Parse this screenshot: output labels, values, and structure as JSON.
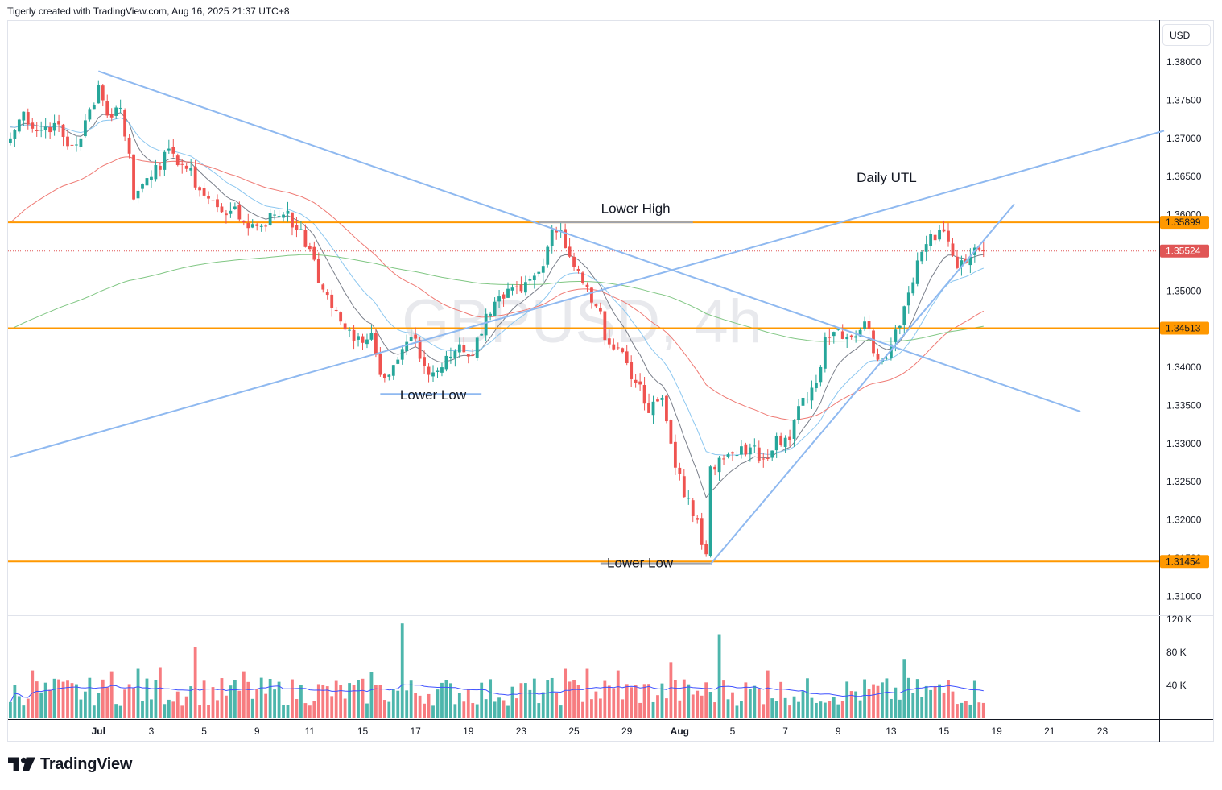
{
  "header": {
    "text": "Tigerly created with TradingView.com, Aug 16, 2025 21:37 UTC+8"
  },
  "watermark": "GBPUSD, 4h",
  "currency": "USD",
  "brand": {
    "name": "TradingView",
    "color": "#131722"
  },
  "colors": {
    "up": "#26a69a",
    "down": "#ef5350",
    "up_vol": "#4db6ac",
    "down_vol": "#f77c80",
    "orange": "#ff9800",
    "trendline": "#8fb9f0",
    "ema_fast": "#7a7f8a",
    "ema_mid": "#8cc7f0",
    "ema_red": "#ef7a74",
    "ema_green": "#81c784",
    "vol_ma": "#3f51ff",
    "current": "#e05656"
  },
  "chart_data": {
    "type": "candlestick",
    "symbol": "GBPUSD",
    "timeframe": "4h",
    "ylim": [
      1.3075,
      1.3855
    ],
    "y_ticks": [
      "1.38000",
      "1.37500",
      "1.37000",
      "1.36500",
      "1.36000",
      "1.35500",
      "1.35000",
      "1.34500",
      "1.34000",
      "1.33500",
      "1.33000",
      "1.32500",
      "1.32000",
      "1.31500",
      "1.31000"
    ],
    "x_ticks": [
      {
        "label": "Jul",
        "bar": 20
      },
      {
        "label": "3",
        "bar": 32
      },
      {
        "label": "5",
        "bar": 44
      },
      {
        "label": "9",
        "bar": 56
      },
      {
        "label": "11",
        "bar": 68
      },
      {
        "label": "15",
        "bar": 80
      },
      {
        "label": "17",
        "bar": 92
      },
      {
        "label": "19",
        "bar": 104
      },
      {
        "label": "23",
        "bar": 116
      },
      {
        "label": "25",
        "bar": 128
      },
      {
        "label": "29",
        "bar": 140
      },
      {
        "label": "Aug",
        "bar": 152
      },
      {
        "label": "5",
        "bar": 164
      },
      {
        "label": "7",
        "bar": 176
      },
      {
        "label": "9",
        "bar": 188
      },
      {
        "label": "13",
        "bar": 200
      },
      {
        "label": "15",
        "bar": 212
      },
      {
        "label": "19",
        "bar": 224
      },
      {
        "label": "21",
        "bar": 236
      },
      {
        "label": "23",
        "bar": 248
      }
    ],
    "anchors": [
      [
        0,
        1.37
      ],
      [
        3,
        1.3735
      ],
      [
        6,
        1.371
      ],
      [
        10,
        1.372
      ],
      [
        13,
        1.369
      ],
      [
        16,
        1.37
      ],
      [
        20,
        1.377
      ],
      [
        22,
        1.373
      ],
      [
        25,
        1.374
      ],
      [
        27,
        1.368
      ],
      [
        28,
        1.362
      ],
      [
        30,
        1.364
      ],
      [
        33,
        1.3665
      ],
      [
        37,
        1.368
      ],
      [
        40,
        1.366
      ],
      [
        44,
        1.3625
      ],
      [
        47,
        1.361
      ],
      [
        50,
        1.3605
      ],
      [
        53,
        1.359
      ],
      [
        56,
        1.3585
      ],
      [
        60,
        1.36
      ],
      [
        63,
        1.3605
      ],
      [
        65,
        1.358
      ],
      [
        68,
        1.3555
      ],
      [
        70,
        1.351
      ],
      [
        72,
        1.3495
      ],
      [
        75,
        1.346
      ],
      [
        78,
        1.3435
      ],
      [
        82,
        1.3445
      ],
      [
        84,
        1.339
      ],
      [
        88,
        1.341
      ],
      [
        91,
        1.344
      ],
      [
        95,
        1.339
      ],
      [
        98,
        1.34
      ],
      [
        102,
        1.343
      ],
      [
        105,
        1.3415
      ],
      [
        108,
        1.347
      ],
      [
        112,
        1.349
      ],
      [
        116,
        1.35
      ],
      [
        120,
        1.3525
      ],
      [
        123,
        1.358
      ],
      [
        125,
        1.358
      ],
      [
        127,
        1.3545
      ],
      [
        130,
        1.351
      ],
      [
        133,
        1.348
      ],
      [
        136,
        1.343
      ],
      [
        139,
        1.342
      ],
      [
        142,
        1.338
      ],
      [
        145,
        1.334
      ],
      [
        148,
        1.336
      ],
      [
        150,
        1.33
      ],
      [
        153,
        1.323
      ],
      [
        156,
        1.32
      ],
      [
        158,
        1.3155
      ],
      [
        159,
        1.327
      ],
      [
        162,
        1.328
      ],
      [
        165,
        1.3285
      ],
      [
        168,
        1.3295
      ],
      [
        171,
        1.328
      ],
      [
        174,
        1.331
      ],
      [
        177,
        1.3305
      ],
      [
        180,
        1.336
      ],
      [
        183,
        1.338
      ],
      [
        185,
        1.344
      ],
      [
        188,
        1.345
      ],
      [
        191,
        1.344
      ],
      [
        194,
        1.346
      ],
      [
        197,
        1.341
      ],
      [
        200,
        1.343
      ],
      [
        203,
        1.348
      ],
      [
        206,
        1.354
      ],
      [
        209,
        1.3575
      ],
      [
        211,
        1.358
      ],
      [
        213,
        1.3565
      ],
      [
        215,
        1.353
      ],
      [
        218,
        1.3545
      ],
      [
        221,
        1.3552
      ]
    ],
    "wick_range": 0.0022,
    "volume": {
      "ylim": [
        0,
        123000
      ],
      "y_ticks": [
        "120 K",
        "80 K",
        "40 K"
      ],
      "typical": 33000,
      "spikes": [
        {
          "bar": 5,
          "value": 58000
        },
        {
          "bar": 10,
          "value": 48000
        },
        {
          "bar": 23,
          "value": 57000
        },
        {
          "bar": 29,
          "value": 60000
        },
        {
          "bar": 34,
          "value": 62000
        },
        {
          "bar": 42,
          "value": 86000
        },
        {
          "bar": 53,
          "value": 57000
        },
        {
          "bar": 82,
          "value": 56000
        },
        {
          "bar": 89,
          "value": 115000
        },
        {
          "bar": 126,
          "value": 60000
        },
        {
          "bar": 131,
          "value": 60000
        },
        {
          "bar": 138,
          "value": 58000
        },
        {
          "bar": 150,
          "value": 68000
        },
        {
          "bar": 161,
          "value": 102000
        },
        {
          "bar": 172,
          "value": 58000
        },
        {
          "bar": 203,
          "value": 72000
        },
        {
          "bar": 213,
          "value": 46000
        }
      ]
    },
    "horizontal_levels": [
      {
        "value": 1.35899,
        "label": "1.35899"
      },
      {
        "value": 1.34513,
        "label": "1.34513"
      },
      {
        "value": 1.31454,
        "label": "1.31454"
      }
    ],
    "current_price": {
      "value": 1.35524,
      "label": "1.35524"
    },
    "trendlines": [
      {
        "name": "upper-downtrend",
        "from": [
          20,
          1.3788
        ],
        "to": [
          243,
          1.3342
        ]
      },
      {
        "name": "daily-utl",
        "from": [
          0,
          1.3282
        ],
        "to": [
          262,
          1.371
        ]
      },
      {
        "name": "aug-uptrend",
        "from": [
          159,
          1.3142
        ],
        "to": [
          228,
          1.3614
        ]
      }
    ],
    "annotations": [
      {
        "text": "Daily UTL",
        "bar": 199,
        "value": 1.3643
      },
      {
        "text": "Lower High",
        "bar": 142,
        "value": 1.3602
      },
      {
        "text": "Lower Low",
        "bar": 96,
        "value": 1.3358
      },
      {
        "text": "Lower Low",
        "bar": 143,
        "value": 1.3138
      }
    ],
    "annotation_segments": [
      {
        "name": "lower-high-line",
        "from": [
          120,
          1.35899
        ],
        "to": [
          155,
          1.35899
        ]
      },
      {
        "name": "lower-low-line-1",
        "from": [
          84,
          1.3365
        ],
        "to": [
          107,
          1.3365
        ]
      },
      {
        "name": "lower-low-line-2",
        "from": [
          134,
          1.3143
        ],
        "to": [
          159,
          1.3143
        ]
      }
    ],
    "moving_averages": [
      {
        "key": "ema_fast",
        "period": 10
      },
      {
        "key": "ema_mid",
        "period": 20
      },
      {
        "key": "ema_red",
        "period": 50
      },
      {
        "key": "ema_green",
        "period": 200
      }
    ]
  }
}
